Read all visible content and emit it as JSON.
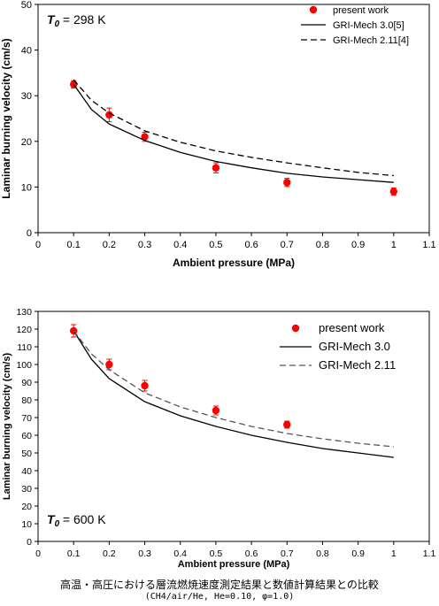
{
  "chart_data": [
    {
      "type": "scatter",
      "title": "",
      "annotation_label": "T",
      "annotation_subscript": "0",
      "annotation_value": " = 298 K",
      "xlabel": "Ambient pressure (MPa)",
      "ylabel": "Laminar burning velocity (cm/s)",
      "xlim": [
        0,
        1.1
      ],
      "ylim": [
        0,
        50
      ],
      "x_ticks": [
        "0",
        "0.1",
        "0.2",
        "0.3",
        "0.4",
        "0.5",
        "0.6",
        "0.7",
        "0.8",
        "0.9",
        "1",
        "1.1"
      ],
      "y_ticks": [
        "0",
        "10",
        "20",
        "30",
        "40",
        "50"
      ],
      "grid": false,
      "legend_position": "top-right",
      "series": [
        {
          "name": "present work",
          "kind": "points",
          "color": "#ff0000",
          "x": [
            0.1,
            0.2,
            0.3,
            0.5,
            0.7,
            1.0
          ],
          "y": [
            32.5,
            25.8,
            21.0,
            14.2,
            11.0,
            9.0
          ],
          "err": [
            0.8,
            1.5,
            1.0,
            1.1,
            0.9,
            0.8
          ]
        },
        {
          "name": "GRI-Mech 3.0[5]",
          "kind": "solid",
          "color": "#000000",
          "x": [
            0.1,
            0.15,
            0.2,
            0.3,
            0.4,
            0.5,
            0.6,
            0.7,
            0.8,
            0.9,
            1.0
          ],
          "y": [
            32.5,
            27.0,
            23.8,
            20.2,
            17.6,
            15.6,
            14.2,
            13.0,
            12.2,
            11.6,
            11.0
          ]
        },
        {
          "name": "GRI-Mech 2.11[4]",
          "kind": "dashed",
          "color": "#000000",
          "x": [
            0.1,
            0.15,
            0.2,
            0.3,
            0.4,
            0.5,
            0.6,
            0.7,
            0.8,
            0.9,
            1.0
          ],
          "y": [
            33.5,
            29.0,
            26.2,
            22.3,
            19.8,
            17.9,
            16.5,
            15.3,
            14.2,
            13.2,
            12.5
          ]
        }
      ]
    },
    {
      "type": "scatter",
      "title": "",
      "annotation_label": "T",
      "annotation_subscript": "0",
      "annotation_value": " = 600 K",
      "xlabel": "Ambient pressure (MPa)",
      "ylabel": "Laminar burning velocity (cm/s)",
      "xlim": [
        0,
        1.1
      ],
      "ylim": [
        0,
        130
      ],
      "x_ticks": [
        "0",
        "0.1",
        "0.2",
        "0.3",
        "0.4",
        "0.5",
        "0.6",
        "0.7",
        "0.8",
        "0.9",
        "1",
        "1.1"
      ],
      "y_ticks": [
        "0",
        "10",
        "20",
        "30",
        "40",
        "50",
        "60",
        "70",
        "80",
        "90",
        "100",
        "110",
        "120",
        "130"
      ],
      "grid": false,
      "legend_position": "top-right",
      "series": [
        {
          "name": "present work",
          "kind": "points",
          "color": "#ff0000",
          "x": [
            0.1,
            0.2,
            0.3,
            0.5,
            0.7
          ],
          "y": [
            119,
            100,
            88,
            74,
            66
          ],
          "err": [
            3.5,
            3.0,
            3.0,
            2.5,
            2.0
          ]
        },
        {
          "name": "GRI-Mech 3.0",
          "kind": "solid",
          "color": "#000000",
          "x": [
            0.1,
            0.15,
            0.2,
            0.3,
            0.4,
            0.5,
            0.6,
            0.7,
            0.8,
            0.9,
            1.0
          ],
          "y": [
            119,
            103,
            92,
            79,
            71,
            65,
            60,
            56,
            52.5,
            50,
            47.5
          ]
        },
        {
          "name": "GRI-Mech 2.11",
          "kind": "dashed",
          "color": "#555555",
          "x": [
            0.1,
            0.15,
            0.2,
            0.3,
            0.4,
            0.5,
            0.6,
            0.7,
            0.8,
            0.9,
            1.0
          ],
          "y": [
            119,
            106,
            97,
            84,
            76,
            70,
            65,
            61,
            58,
            55.5,
            53.5
          ]
        }
      ]
    }
  ],
  "caption": {
    "line1": "高温・高圧における層流燃焼速度測定結果と数値計算結果との比較",
    "line2": "(CH4/air/He, He=0.10, φ=1.0)"
  }
}
